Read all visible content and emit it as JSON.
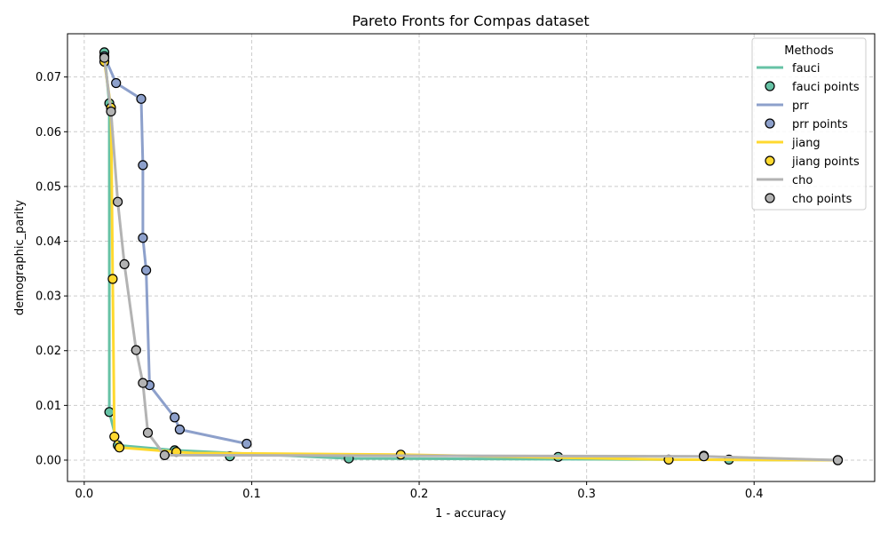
{
  "chart_data": {
    "type": "line",
    "title": "Pareto Fronts for Compas dataset",
    "xlabel": "1 - accuracy",
    "ylabel": "demographic_parity",
    "xlim": [
      -0.01,
      0.472
    ],
    "ylim": [
      -0.0039,
      0.0779
    ],
    "xticks": [
      0.0,
      0.1,
      0.2,
      0.3,
      0.4
    ],
    "xtick_labels": [
      "0.0",
      "0.1",
      "0.2",
      "0.3",
      "0.4"
    ],
    "yticks": [
      0.0,
      0.01,
      0.02,
      0.03,
      0.04,
      0.05,
      0.06,
      0.07
    ],
    "ytick_labels": [
      "0.00",
      "0.01",
      "0.02",
      "0.03",
      "0.04",
      "0.05",
      "0.06",
      "0.07"
    ],
    "grid": true,
    "legend": {
      "title": "Methods",
      "placement": "top-right",
      "entries": [
        "fauci",
        "fauci points",
        "prr",
        "prr points",
        "jiang",
        "jiang points",
        "cho",
        "cho points"
      ]
    },
    "series": [
      {
        "name": "fauci",
        "color": "#66c2a5",
        "line": [
          [
            0.012,
            0.0745
          ],
          [
            0.015,
            0.0652
          ],
          [
            0.015,
            0.0088
          ],
          [
            0.02,
            0.0027
          ],
          [
            0.054,
            0.0018
          ],
          [
            0.158,
            0.0003
          ],
          [
            0.45,
            0.0
          ]
        ],
        "points": [
          [
            0.012,
            0.0745
          ],
          [
            0.015,
            0.0652
          ],
          [
            0.015,
            0.0088
          ],
          [
            0.02,
            0.0027
          ],
          [
            0.054,
            0.0018
          ],
          [
            0.087,
            0.0007
          ],
          [
            0.158,
            0.0003
          ],
          [
            0.283,
            0.0006
          ],
          [
            0.37,
            0.0008
          ],
          [
            0.385,
            0.0001
          ],
          [
            0.45,
            0.0
          ]
        ]
      },
      {
        "name": "prr",
        "color": "#8da0cb",
        "line": [
          [
            0.012,
            0.0738
          ],
          [
            0.019,
            0.0689
          ],
          [
            0.034,
            0.066
          ],
          [
            0.035,
            0.0539
          ],
          [
            0.035,
            0.0406
          ],
          [
            0.037,
            0.0347
          ],
          [
            0.039,
            0.0137
          ],
          [
            0.054,
            0.0078
          ],
          [
            0.057,
            0.0056
          ],
          [
            0.097,
            0.003
          ]
        ],
        "points": [
          [
            0.012,
            0.0738
          ],
          [
            0.019,
            0.0689
          ],
          [
            0.034,
            0.066
          ],
          [
            0.035,
            0.0539
          ],
          [
            0.035,
            0.0406
          ],
          [
            0.037,
            0.0347
          ],
          [
            0.039,
            0.0137
          ],
          [
            0.054,
            0.0078
          ],
          [
            0.057,
            0.0056
          ],
          [
            0.097,
            0.003
          ]
        ]
      },
      {
        "name": "jiang",
        "color": "#ffd92f",
        "line": [
          [
            0.012,
            0.0728
          ],
          [
            0.016,
            0.0644
          ],
          [
            0.017,
            0.0331
          ],
          [
            0.018,
            0.0043
          ],
          [
            0.021,
            0.0023
          ],
          [
            0.055,
            0.0015
          ],
          [
            0.065,
            0.0013
          ],
          [
            0.189,
            0.001
          ],
          [
            0.349,
            0.0001
          ],
          [
            0.45,
            0.0
          ]
        ],
        "points": [
          [
            0.012,
            0.0728
          ],
          [
            0.016,
            0.0644
          ],
          [
            0.017,
            0.0331
          ],
          [
            0.018,
            0.0043
          ],
          [
            0.021,
            0.0023
          ],
          [
            0.055,
            0.0015
          ],
          [
            0.189,
            0.001
          ],
          [
            0.349,
            0.0001
          ],
          [
            0.45,
            0.0
          ]
        ]
      },
      {
        "name": "cho",
        "color": "#b3b3b3",
        "line": [
          [
            0.012,
            0.0735
          ],
          [
            0.016,
            0.0637
          ],
          [
            0.02,
            0.0472
          ],
          [
            0.024,
            0.0358
          ],
          [
            0.031,
            0.0201
          ],
          [
            0.035,
            0.0141
          ],
          [
            0.038,
            0.005
          ],
          [
            0.048,
            0.0009
          ],
          [
            0.37,
            0.0007
          ],
          [
            0.45,
            0.0
          ]
        ],
        "points": [
          [
            0.012,
            0.0735
          ],
          [
            0.016,
            0.0637
          ],
          [
            0.02,
            0.0472
          ],
          [
            0.024,
            0.0358
          ],
          [
            0.031,
            0.0201
          ],
          [
            0.035,
            0.0141
          ],
          [
            0.038,
            0.005
          ],
          [
            0.048,
            0.0009
          ],
          [
            0.37,
            0.0007
          ],
          [
            0.45,
            0.0
          ]
        ]
      }
    ]
  }
}
